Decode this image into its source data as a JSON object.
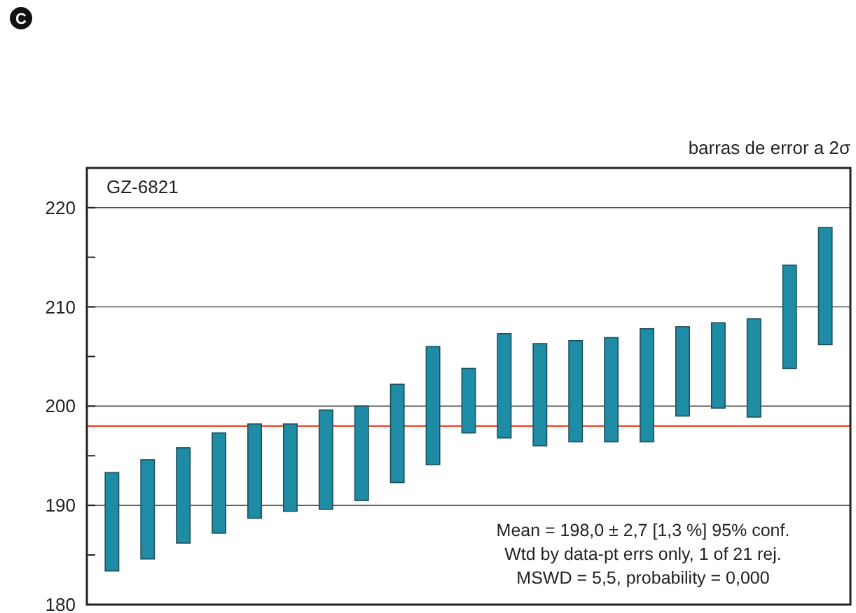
{
  "chart_data": {
    "type": "bar",
    "categories": [
      null,
      null,
      null,
      null,
      null,
      null,
      null,
      null,
      null,
      null,
      null,
      null,
      null,
      null,
      null,
      null,
      null,
      null,
      null,
      null,
      null
    ],
    "base": [
      183.4,
      184.6,
      186.2,
      187.2,
      188.7,
      189.4,
      189.6,
      190.5,
      192.3,
      194.1,
      197.3,
      196.8,
      196.0,
      196.4,
      196.4,
      196.4,
      199.0,
      199.8,
      198.9,
      203.8,
      206.2
    ],
    "values": [
      9.9,
      10.0,
      9.6,
      10.1,
      9.5,
      8.8,
      10.0,
      9.5,
      9.9,
      11.9,
      6.5,
      10.5,
      10.3,
      10.2,
      10.5,
      11.4,
      9.0,
      8.6,
      9.9,
      10.4,
      11.8
    ],
    "color": "#1f8ca6",
    "ylim": [
      180,
      224
    ],
    "yticks": [
      180,
      {
        "value": 185,
        "label": null
      },
      190,
      {
        "value": 195,
        "label": null
      },
      200,
      {
        "value": 205,
        "label": null
      },
      210,
      {
        "value": 215,
        "label": null
      },
      220
    ],
    "grid": "y",
    "ref_lines": [
      {
        "axis": "y",
        "value": 198.0,
        "color": "#f0553a"
      }
    ],
    "annotations": [
      "C",
      "barras de error a 2σ",
      "GZ-6821",
      "Mean = 198,0 ± 2,7  [1,3 %]  95% conf.",
      "Wtd by data-pt errs only, 1 of 21 rej.",
      "MSWD = 5,5, probability = 0,000"
    ]
  }
}
